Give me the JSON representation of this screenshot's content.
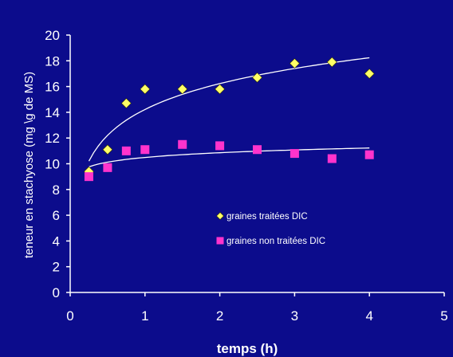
{
  "chart_data": {
    "type": "scatter",
    "xlabel": "temps (h)",
    "ylabel": "teneur en stachyose (mg \\g de MS)",
    "xlim": [
      0,
      5
    ],
    "ylim": [
      0,
      20
    ],
    "x_ticks": [
      0,
      1,
      2,
      3,
      4,
      5
    ],
    "y_ticks": [
      0,
      2,
      4,
      6,
      8,
      10,
      12,
      14,
      16,
      18,
      20
    ],
    "grid": false,
    "legend_position": "center-right",
    "series": [
      {
        "name": "graines traitées DIC",
        "marker": "diamond",
        "color": "#ffff66",
        "x": [
          0.25,
          0.5,
          0.75,
          1,
          1.5,
          2,
          2.5,
          3,
          3.5,
          4
        ],
        "y": [
          9.4,
          11.1,
          14.7,
          15.8,
          15.8,
          15.8,
          16.7,
          17.8,
          17.9,
          17.0
        ],
        "trendline": {
          "type": "logarithmic",
          "x_range": [
            0.25,
            4
          ]
        }
      },
      {
        "name": "graines non traitées DIC",
        "marker": "square",
        "color": "#ff33cc",
        "x": [
          0.25,
          0.5,
          0.75,
          1,
          1.5,
          2,
          2.5,
          3,
          3.5,
          4
        ],
        "y": [
          9.0,
          9.7,
          11.0,
          11.1,
          11.5,
          11.4,
          11.1,
          10.8,
          10.4,
          10.7
        ],
        "trendline": {
          "type": "logarithmic",
          "x_range": [
            0.25,
            4
          ]
        }
      }
    ]
  },
  "colors": {
    "background": "#0c0c8c",
    "axis": "#ffffff",
    "text": "#ffffff",
    "trendline": "#ffffff"
  }
}
